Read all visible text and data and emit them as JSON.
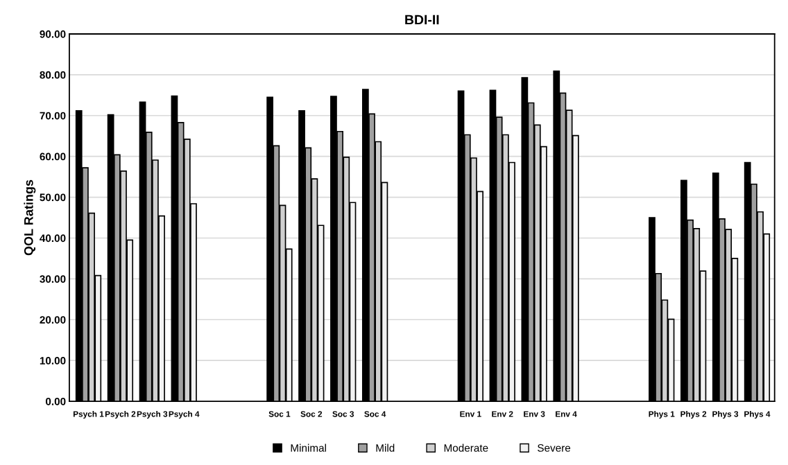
{
  "chart_data": {
    "type": "bar",
    "title": "BDI-II",
    "ylabel": "QOL Ratings",
    "categories": [
      "Psych 1",
      "Psych 2",
      "Psych 3",
      "Psych 4",
      null,
      null,
      "Soc 1",
      "Soc 2",
      "Soc 3",
      "Soc 4",
      null,
      null,
      "Env 1",
      "Env 2",
      "Env 3",
      "Env 4",
      null,
      null,
      "Phys 1",
      "Phys 2",
      "Phys 3",
      "Phys 4"
    ],
    "series": [
      {
        "name": "Minimal",
        "color": "#000000",
        "values": [
          71.2,
          70.2,
          73.3,
          74.8,
          null,
          null,
          74.5,
          71.2,
          74.7,
          76.4,
          null,
          null,
          76.0,
          76.2,
          79.3,
          80.9,
          null,
          null,
          45.0,
          54.1,
          55.9,
          58.5
        ]
      },
      {
        "name": "Mild",
        "color": "#a0a0a0",
        "values": [
          57.2,
          60.4,
          65.9,
          68.3,
          null,
          null,
          62.6,
          62.1,
          66.1,
          70.4,
          null,
          null,
          65.3,
          69.6,
          73.1,
          75.5,
          null,
          null,
          31.3,
          44.4,
          44.7,
          53.2
        ]
      },
      {
        "name": "Moderate",
        "color": "#d0d0d0",
        "values": [
          46.1,
          56.4,
          59.1,
          64.2,
          null,
          null,
          48.0,
          54.5,
          59.8,
          63.6,
          null,
          null,
          59.6,
          65.3,
          67.7,
          71.3,
          null,
          null,
          24.8,
          42.3,
          42.1,
          46.4
        ]
      },
      {
        "name": "Severe",
        "color": "#f2f2f2",
        "values": [
          30.8,
          39.5,
          45.4,
          48.4,
          null,
          null,
          37.3,
          43.1,
          48.7,
          53.6,
          null,
          null,
          51.4,
          58.5,
          62.4,
          65.1,
          null,
          null,
          20.1,
          31.9,
          35.0,
          41.0
        ]
      }
    ],
    "ylim": [
      0,
      90
    ],
    "yticks": [
      {
        "value": 0,
        "label": "0.00"
      },
      {
        "value": 10,
        "label": "10.00"
      },
      {
        "value": 20,
        "label": "20.00"
      },
      {
        "value": 30,
        "label": "30.00"
      },
      {
        "value": 40,
        "label": "40.00"
      },
      {
        "value": 50,
        "label": "50.00"
      },
      {
        "value": 60,
        "label": "60.00"
      },
      {
        "value": 70,
        "label": "70.00"
      },
      {
        "value": 80,
        "label": "80.00"
      },
      {
        "value": 90,
        "label": "90.00"
      }
    ],
    "grid": "y",
    "legend": "bottom"
  }
}
